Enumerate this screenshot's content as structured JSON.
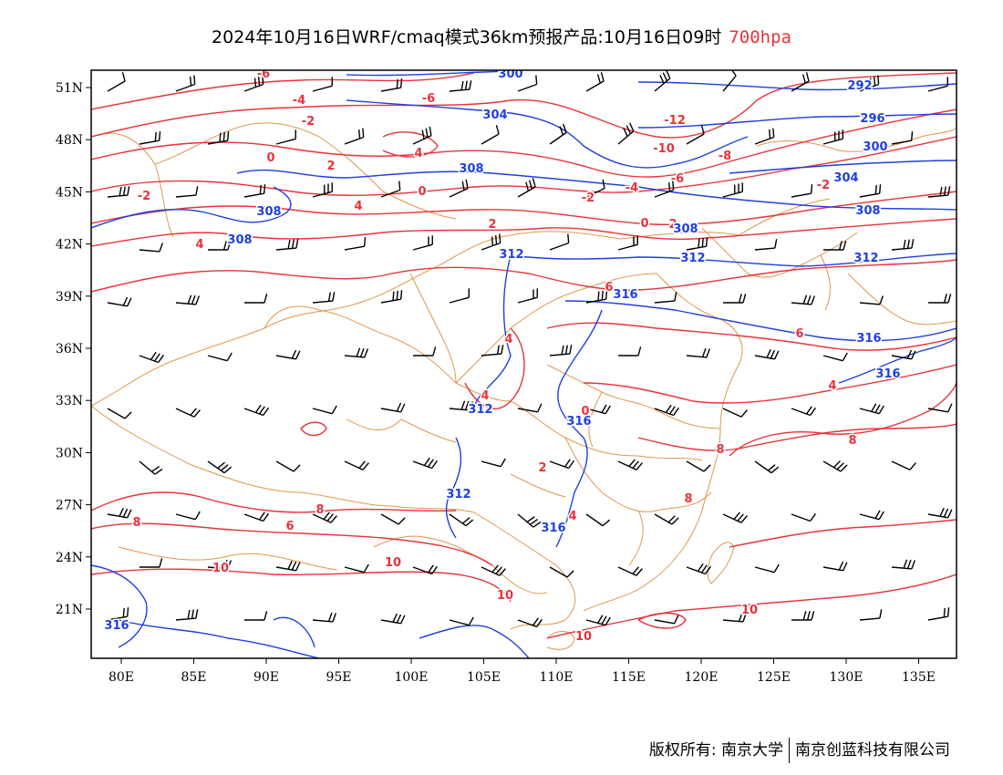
{
  "title": {
    "text": "2024年10月16日WRF/cmaq模式36km预报产品:10月16日09时",
    "level": "700hpa"
  },
  "colors": {
    "temperature": "#e8333a",
    "height": "#1f3fe0",
    "border": "#e0964a",
    "wind": "#000000"
  },
  "axes": {
    "x_ticks": [
      "80E",
      "85E",
      "90E",
      "95E",
      "100E",
      "105E",
      "110E",
      "115E",
      "120E",
      "125E",
      "130E",
      "135E"
    ],
    "y_ticks": [
      "51N",
      "48N",
      "45N",
      "42N",
      "39N",
      "36N",
      "33N",
      "30N",
      "27N",
      "24N",
      "21N"
    ]
  },
  "contour_labels": {
    "temperature": [
      "-6",
      "-4",
      "-6",
      "-2",
      "0",
      "-2",
      "2",
      "4",
      "-12",
      "-10",
      "-6",
      "-8",
      "-4",
      "-2",
      "-2",
      "0",
      "4",
      "2",
      "0",
      "2",
      "4",
      "6",
      "4",
      "4",
      "4",
      "0",
      "8",
      "2",
      "4",
      "6",
      "8",
      "8",
      "6",
      "8",
      "8",
      "10",
      "10",
      "10",
      "10",
      "10"
    ],
    "height": [
      "300",
      "304",
      "308",
      "308",
      "308",
      "292",
      "296",
      "300",
      "304",
      "308",
      "308",
      "312",
      "312",
      "312",
      "316",
      "316",
      "316",
      "312",
      "316",
      "312",
      "316",
      "316"
    ]
  },
  "footer": {
    "copyright": "版权所有: 南京大学",
    "company": "南京创蓝科技有限公司"
  }
}
